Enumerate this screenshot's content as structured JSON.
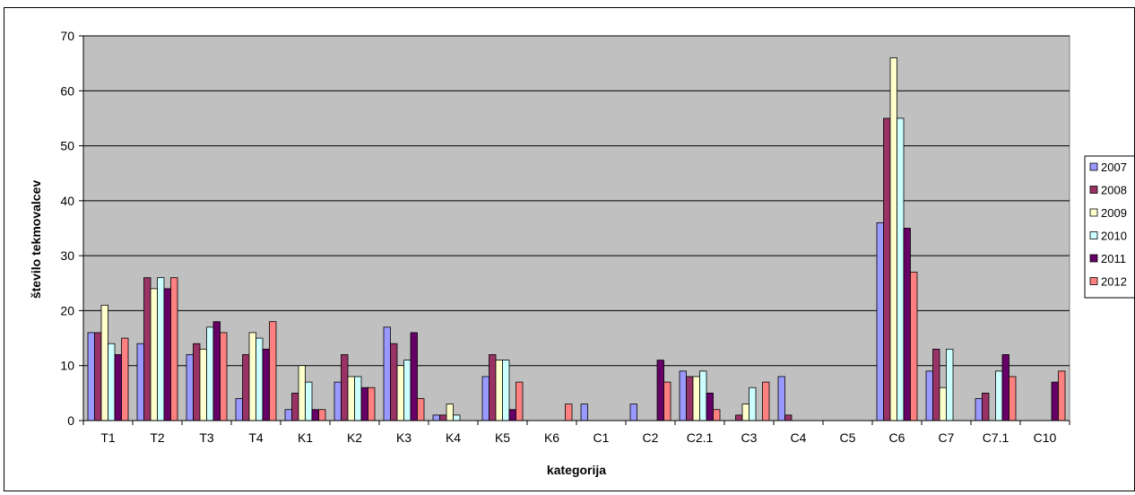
{
  "chart_data": {
    "type": "bar",
    "xlabel": "kategorija",
    "ylabel": "število tekmovalcev",
    "ylim": [
      0,
      70
    ],
    "yticks": [
      0,
      10,
      20,
      30,
      40,
      50,
      60,
      70
    ],
    "grid": true,
    "legend_position": "right",
    "plot_background": "#c0c0c0",
    "categories": [
      "T1",
      "T2",
      "T3",
      "T4",
      "K1",
      "K2",
      "K3",
      "K4",
      "K5",
      "K6",
      "C1",
      "C2",
      "C2.1",
      "C3",
      "C4",
      "C5",
      "C6",
      "C7",
      "C7.1",
      "C10"
    ],
    "series": [
      {
        "name": "2007",
        "color": "#9999ff",
        "values": [
          16,
          14,
          12,
          4,
          2,
          7,
          17,
          1,
          8,
          0,
          3,
          3,
          9,
          0,
          8,
          0,
          36,
          9,
          4,
          0
        ]
      },
      {
        "name": "2008",
        "color": "#993366",
        "values": [
          16,
          26,
          14,
          12,
          5,
          12,
          14,
          1,
          12,
          0,
          0,
          0,
          8,
          1,
          1,
          0,
          55,
          13,
          5,
          0
        ]
      },
      {
        "name": "2009",
        "color": "#ffffcc",
        "values": [
          21,
          24,
          13,
          16,
          10,
          8,
          10,
          3,
          11,
          0,
          0,
          0,
          8,
          3,
          0,
          0,
          66,
          6,
          0,
          0
        ]
      },
      {
        "name": "2010",
        "color": "#ccffff",
        "values": [
          14,
          26,
          17,
          15,
          7,
          8,
          11,
          1,
          11,
          0,
          0,
          0,
          9,
          6,
          0,
          0,
          55,
          13,
          9,
          0
        ]
      },
      {
        "name": "2011",
        "color": "#660066",
        "values": [
          12,
          24,
          18,
          13,
          2,
          6,
          16,
          0,
          2,
          0,
          0,
          11,
          5,
          0,
          0,
          0,
          35,
          0,
          12,
          7
        ]
      },
      {
        "name": "2012",
        "color": "#ff8080",
        "values": [
          15,
          26,
          16,
          18,
          2,
          6,
          4,
          0,
          7,
          3,
          0,
          7,
          2,
          7,
          0,
          0,
          27,
          0,
          8,
          9
        ]
      }
    ]
  }
}
